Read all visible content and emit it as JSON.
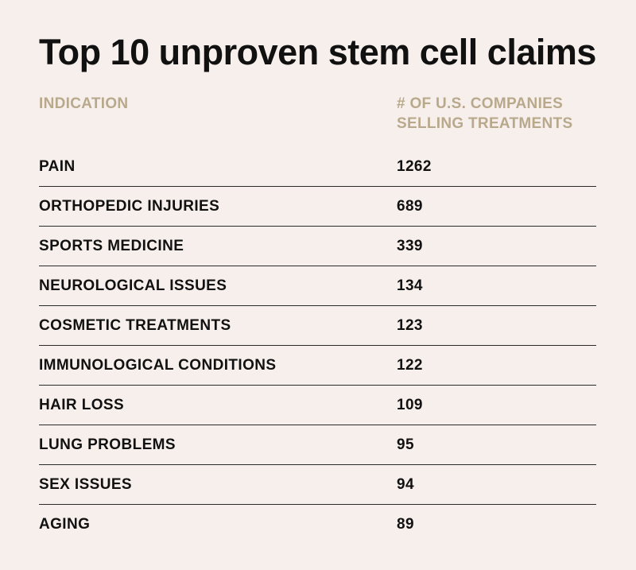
{
  "chart_data": {
    "type": "table",
    "title": "Top 10 unproven stem cell claims",
    "columns": [
      "INDICATION",
      "# OF U.S. COMPANIES SELLING TREATMENTS"
    ],
    "header_lines": {
      "left": "INDICATION",
      "right_line1": "# OF U.S. COMPANIES",
      "right_line2": "SELLING TREATMENTS"
    },
    "rows": [
      {
        "indication": "PAIN",
        "value": 1262
      },
      {
        "indication": "ORTHOPEDIC INJURIES",
        "value": 689
      },
      {
        "indication": "SPORTS MEDICINE",
        "value": 339
      },
      {
        "indication": "NEUROLOGICAL ISSUES",
        "value": 134
      },
      {
        "indication": "COSMETIC TREATMENTS",
        "value": 123
      },
      {
        "indication": "IMMUNOLOGICAL CONDITIONS",
        "value": 122
      },
      {
        "indication": "HAIR LOSS",
        "value": 109
      },
      {
        "indication": "LUNG PROBLEMS",
        "value": 95
      },
      {
        "indication": "SEX ISSUES",
        "value": 94
      },
      {
        "indication": "AGING",
        "value": 89
      }
    ]
  },
  "colors": {
    "background": "#f7efeb",
    "text": "#111111",
    "header": "#b9a98c",
    "rule": "#2b2b2b"
  }
}
